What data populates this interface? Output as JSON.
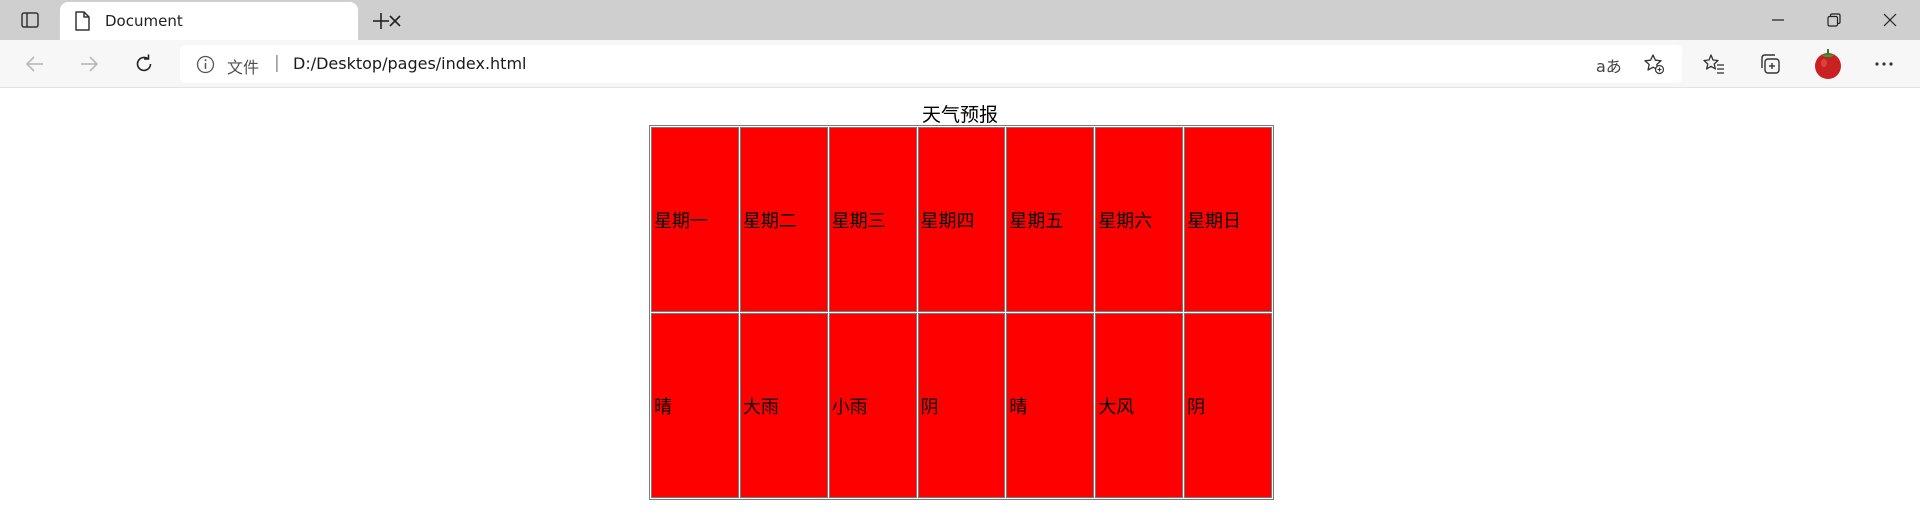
{
  "browser": {
    "tab": {
      "title": "Document"
    },
    "address": {
      "security_label": "文件",
      "separator": "|",
      "url": "D:/Desktop/pages/index.html",
      "read_aloud": "aあ"
    }
  },
  "page": {
    "caption": "天气预报",
    "table": {
      "rows": [
        [
          "星期一",
          "星期二",
          "星期三",
          "星期四",
          "星期五",
          "星期六",
          "星期日"
        ],
        [
          "晴",
          "大雨",
          "小雨",
          "阴",
          "晴",
          "大风",
          "阴"
        ]
      ]
    }
  },
  "colors": {
    "cell_bg": "#ff0000",
    "tabstrip_bg": "#cfcfcf",
    "toolbar_bg": "#f7f7f7"
  }
}
